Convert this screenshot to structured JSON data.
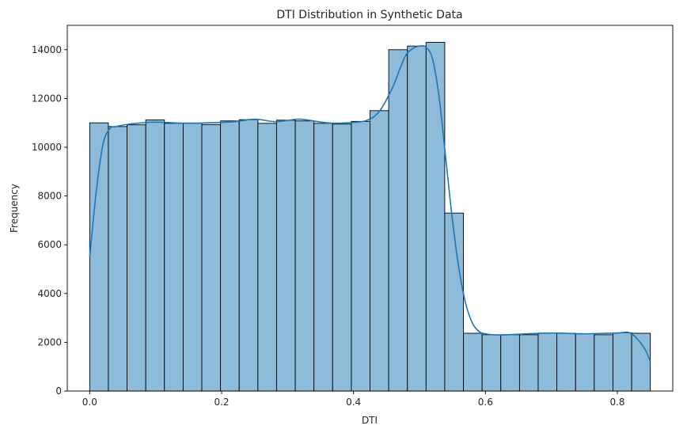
{
  "chart_data": {
    "type": "bar",
    "title": "DTI Distribution in Synthetic Data",
    "xlabel": "DTI",
    "ylabel": "Frequency",
    "xlim": [
      -0.034,
      0.884
    ],
    "ylim": [
      0,
      15000
    ],
    "x_ticks": [
      0.0,
      0.2,
      0.4,
      0.6,
      0.8
    ],
    "x_tick_labels": [
      "0.0",
      "0.2",
      "0.4",
      "0.6",
      "0.8"
    ],
    "y_ticks": [
      0,
      2000,
      4000,
      6000,
      8000,
      10000,
      12000,
      14000
    ],
    "y_tick_labels": [
      "0",
      "2000",
      "4000",
      "6000",
      "8000",
      "10000",
      "12000",
      "14000"
    ],
    "bin_edges": [
      0.0,
      0.0283,
      0.0567,
      0.085,
      0.1133,
      0.1417,
      0.17,
      0.1983,
      0.2267,
      0.255,
      0.2833,
      0.3117,
      0.34,
      0.3683,
      0.3967,
      0.425,
      0.4533,
      0.4817,
      0.51,
      0.5383,
      0.5667,
      0.595,
      0.6233,
      0.6517,
      0.68,
      0.7083,
      0.7367,
      0.765,
      0.7933,
      0.8217,
      0.85
    ],
    "values": [
      11000,
      10850,
      10920,
      11120,
      10980,
      10980,
      10930,
      11080,
      11130,
      10980,
      11110,
      11080,
      10980,
      10950,
      11060,
      11500,
      14000,
      14150,
      14300,
      7300,
      2370,
      2310,
      2310,
      2310,
      2370,
      2370,
      2350,
      2310,
      2390,
      2370
    ],
    "kde": {
      "x": [
        0.0,
        0.01,
        0.02,
        0.03,
        0.04,
        0.06,
        0.08,
        0.1,
        0.14,
        0.18,
        0.22,
        0.25,
        0.28,
        0.3,
        0.32,
        0.36,
        0.39,
        0.42,
        0.44,
        0.46,
        0.47,
        0.48,
        0.49,
        0.5,
        0.51,
        0.52,
        0.53,
        0.54,
        0.55,
        0.56,
        0.57,
        0.58,
        0.59,
        0.6,
        0.62,
        0.65,
        0.7,
        0.75,
        0.8,
        0.82,
        0.84,
        0.85
      ],
      "y": [
        5500,
        8200,
        10100,
        10750,
        10850,
        10950,
        11000,
        11030,
        10990,
        11000,
        11050,
        11150,
        11050,
        11100,
        11150,
        11000,
        11000,
        11100,
        11500,
        12500,
        13200,
        13800,
        14050,
        14150,
        14100,
        13600,
        12000,
        9500,
        7000,
        5000,
        3600,
        2800,
        2450,
        2350,
        2300,
        2330,
        2380,
        2350,
        2380,
        2370,
        1800,
        1200
      ]
    },
    "bar_color": "#8fbbda",
    "bar_edge_color": "#000000",
    "line_color": "#1f77b4",
    "grid": false,
    "legend": "none"
  }
}
